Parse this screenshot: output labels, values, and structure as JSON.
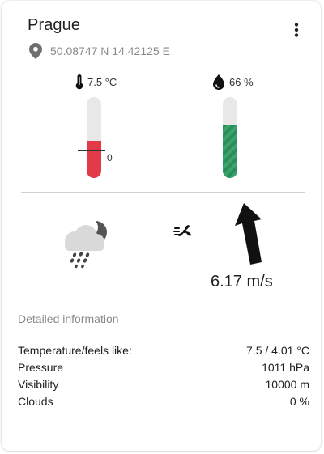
{
  "card": {
    "title": "Prague",
    "coordinates": "50.08747 N 14.42125 E"
  },
  "temperature_gauge": {
    "label": "7.5 °C",
    "zero_label": "0",
    "level": 0.46,
    "color": "#e23a48"
  },
  "humidity_gauge": {
    "label": "66 %",
    "level": 0.66,
    "color": "#2e8b5a"
  },
  "current": {
    "weather_icon": "cloud-night-rain-icon",
    "wind_icon": "wind-icon",
    "wind_speed": "6.17 m/s",
    "wind_direction_icon": "wind-direction-arrow-icon"
  },
  "details": {
    "title": "Detailed information",
    "rows": [
      {
        "label": "Temperature/feels like:",
        "value": "7.5 / 4.01 °C"
      },
      {
        "label": "Pressure",
        "value": "1011 hPa"
      },
      {
        "label": "Visibility",
        "value": "10000 m"
      },
      {
        "label": "Clouds",
        "value": "0 %"
      }
    ]
  },
  "icons": {
    "menu": "more-vertical-icon",
    "location": "map-pin-icon",
    "thermometer": "thermometer-icon",
    "drop": "water-drop-icon"
  }
}
